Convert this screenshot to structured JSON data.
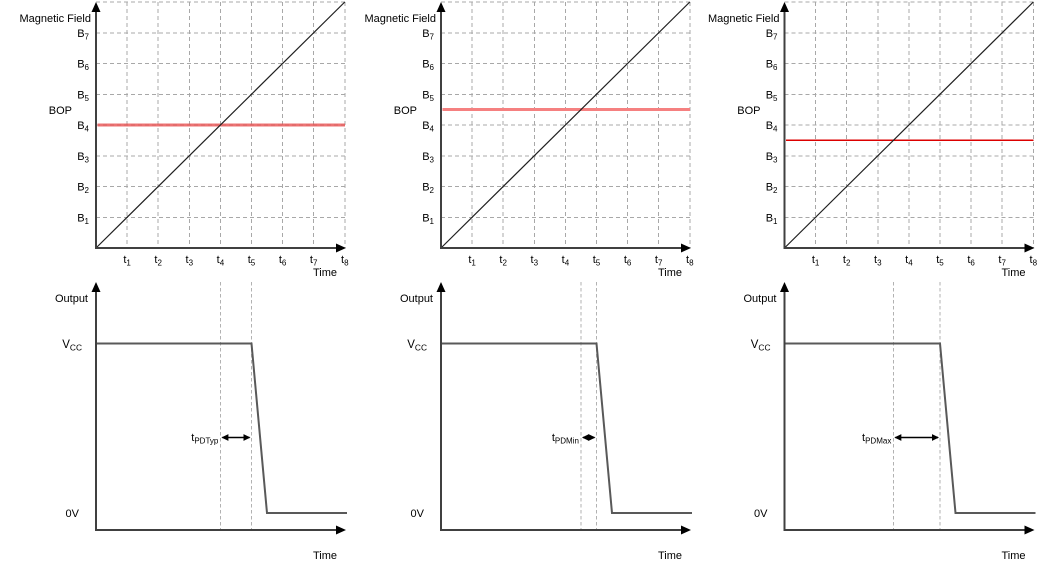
{
  "colors": {
    "background": "#ffffff",
    "axis": "#404040",
    "grid": "#a8a8a8",
    "ramp_line": "#1f1f1f",
    "waveform": "#595959",
    "marker_dash": "#b2b2b2",
    "arrow": "#000000",
    "text": "#000000"
  },
  "panels": [
    {
      "variant": "typical",
      "field_chart": {
        "title": "Magnetic Field",
        "threshold_label": "BOP",
        "time_label": "Time",
        "y_tick_base": "B",
        "y_tick_subscripts": [
          "1",
          "2",
          "3",
          "4",
          "5",
          "6",
          "7"
        ],
        "x_tick_base": "t",
        "x_tick_subscripts": [
          "1",
          "2",
          "3",
          "4",
          "5",
          "6",
          "7",
          "8"
        ],
        "bop_level": 4,
        "bop_color": "#e85555",
        "bop_width": 3,
        "bop_opacity": 0.82,
        "ramp_from": [
          0,
          0
        ],
        "ramp_to": [
          8,
          8
        ]
      },
      "output_chart": {
        "title": "Output",
        "high_label_base": "V",
        "high_label_subscript": "CC",
        "low_label": "0V",
        "time_label": "Time",
        "delay_label_base": "t",
        "delay_label_subscript": "PDTyp",
        "threshold_cross_t": 4,
        "output_fall_t": 5
      }
    },
    {
      "variant": "minimum",
      "field_chart": {
        "title": "Magnetic Field",
        "threshold_label": "BOP",
        "time_label": "Time",
        "y_tick_base": "B",
        "y_tick_subscripts": [
          "1",
          "2",
          "3",
          "4",
          "5",
          "6",
          "7"
        ],
        "x_tick_base": "t",
        "x_tick_subscripts": [
          "1",
          "2",
          "3",
          "4",
          "5",
          "6",
          "7",
          "8"
        ],
        "bop_level": 4.5,
        "bop_color": "#f58080",
        "bop_width": 3,
        "bop_opacity": 1,
        "ramp_from": [
          0,
          0
        ],
        "ramp_to": [
          8,
          8
        ]
      },
      "output_chart": {
        "title": "Output",
        "high_label_base": "V",
        "high_label_subscript": "CC",
        "low_label": "0V",
        "time_label": "Time",
        "delay_label_base": "t",
        "delay_label_subscript": "PDMin",
        "threshold_cross_t": 4.5,
        "output_fall_t": 5
      }
    },
    {
      "variant": "maximum",
      "field_chart": {
        "title": "Magnetic Field",
        "threshold_label": "BOP",
        "time_label": "Time",
        "y_tick_base": "B",
        "y_tick_subscripts": [
          "1",
          "2",
          "3",
          "4",
          "5",
          "6",
          "7"
        ],
        "x_tick_base": "t",
        "x_tick_subscripts": [
          "1",
          "2",
          "3",
          "4",
          "5",
          "6",
          "7",
          "8"
        ],
        "bop_level": 3.5,
        "bop_color": "#dc0000",
        "bop_width": 1.5,
        "bop_opacity": 1,
        "ramp_from": [
          0,
          0
        ],
        "ramp_to": [
          8,
          8
        ]
      },
      "output_chart": {
        "title": "Output",
        "high_label_base": "V",
        "high_label_subscript": "CC",
        "low_label": "0V",
        "time_label": "Time",
        "delay_label_base": "t",
        "delay_label_subscript": "PDMax",
        "threshold_cross_t": 3.5,
        "output_fall_t": 5
      }
    }
  ],
  "chart_data": [
    {
      "type": "line",
      "panel": 1,
      "row": "top",
      "title": "Magnetic Field",
      "xlabel": "Time",
      "x_ticks": [
        "t1",
        "t2",
        "t3",
        "t4",
        "t5",
        "t6",
        "t7",
        "t8"
      ],
      "y_ticks": [
        "B1",
        "B2",
        "B3",
        "B4",
        "B5",
        "B6",
        "B7"
      ],
      "xlim": [
        0,
        8
      ],
      "ylim": [
        0,
        8
      ],
      "grid": true,
      "series": [
        {
          "name": "applied magnetic field ramp",
          "x": [
            0,
            8
          ],
          "y": [
            0,
            8
          ]
        },
        {
          "name": "BOP operate threshold",
          "x": [
            0,
            8
          ],
          "y": [
            4,
            4
          ],
          "color": "#e85555"
        }
      ],
      "annotations": [
        {
          "text": "BOP",
          "y": 4
        }
      ]
    },
    {
      "type": "line",
      "panel": 1,
      "row": "bottom",
      "title": "Output",
      "xlabel": "Time",
      "y_levels": [
        "VCC",
        "0V"
      ],
      "series": [
        {
          "name": "output voltage",
          "x": [
            0,
            5,
            5.5,
            8
          ],
          "y": [
            "VCC",
            "VCC",
            "0V",
            "0V"
          ]
        }
      ],
      "annotations": [
        {
          "text": "tPDTyp",
          "span_x": [
            4,
            5
          ]
        }
      ]
    },
    {
      "type": "line",
      "panel": 2,
      "row": "top",
      "title": "Magnetic Field",
      "xlabel": "Time",
      "x_ticks": [
        "t1",
        "t2",
        "t3",
        "t4",
        "t5",
        "t6",
        "t7",
        "t8"
      ],
      "y_ticks": [
        "B1",
        "B2",
        "B3",
        "B4",
        "B5",
        "B6",
        "B7"
      ],
      "xlim": [
        0,
        8
      ],
      "ylim": [
        0,
        8
      ],
      "grid": true,
      "series": [
        {
          "name": "applied magnetic field ramp",
          "x": [
            0,
            8
          ],
          "y": [
            0,
            8
          ]
        },
        {
          "name": "BOP operate threshold",
          "x": [
            0,
            8
          ],
          "y": [
            4.5,
            4.5
          ],
          "color": "#f58080"
        }
      ],
      "annotations": [
        {
          "text": "BOP",
          "y": 4.5
        }
      ]
    },
    {
      "type": "line",
      "panel": 2,
      "row": "bottom",
      "title": "Output",
      "xlabel": "Time",
      "y_levels": [
        "VCC",
        "0V"
      ],
      "series": [
        {
          "name": "output voltage",
          "x": [
            0,
            5,
            5.5,
            8
          ],
          "y": [
            "VCC",
            "VCC",
            "0V",
            "0V"
          ]
        }
      ],
      "annotations": [
        {
          "text": "tPDMin",
          "span_x": [
            4.5,
            5
          ]
        }
      ]
    },
    {
      "type": "line",
      "panel": 3,
      "row": "top",
      "title": "Magnetic Field",
      "xlabel": "Time",
      "x_ticks": [
        "t1",
        "t2",
        "t3",
        "t4",
        "t5",
        "t6",
        "t7",
        "t8"
      ],
      "y_ticks": [
        "B1",
        "B2",
        "B3",
        "B4",
        "B5",
        "B6",
        "B7"
      ],
      "xlim": [
        0,
        8
      ],
      "ylim": [
        0,
        8
      ],
      "grid": true,
      "series": [
        {
          "name": "applied magnetic field ramp",
          "x": [
            0,
            8
          ],
          "y": [
            0,
            8
          ]
        },
        {
          "name": "BOP operate threshold",
          "x": [
            0,
            8
          ],
          "y": [
            3.5,
            3.5
          ],
          "color": "#dc0000"
        }
      ],
      "annotations": [
        {
          "text": "BOP",
          "y": 3.5
        }
      ]
    },
    {
      "type": "line",
      "panel": 3,
      "row": "bottom",
      "title": "Output",
      "xlabel": "Time",
      "y_levels": [
        "VCC",
        "0V"
      ],
      "series": [
        {
          "name": "output voltage",
          "x": [
            0,
            5,
            5.5,
            8
          ],
          "y": [
            "VCC",
            "VCC",
            "0V",
            "0V"
          ]
        }
      ],
      "annotations": [
        {
          "text": "tPDMax",
          "span_x": [
            3.5,
            5
          ]
        }
      ]
    }
  ]
}
